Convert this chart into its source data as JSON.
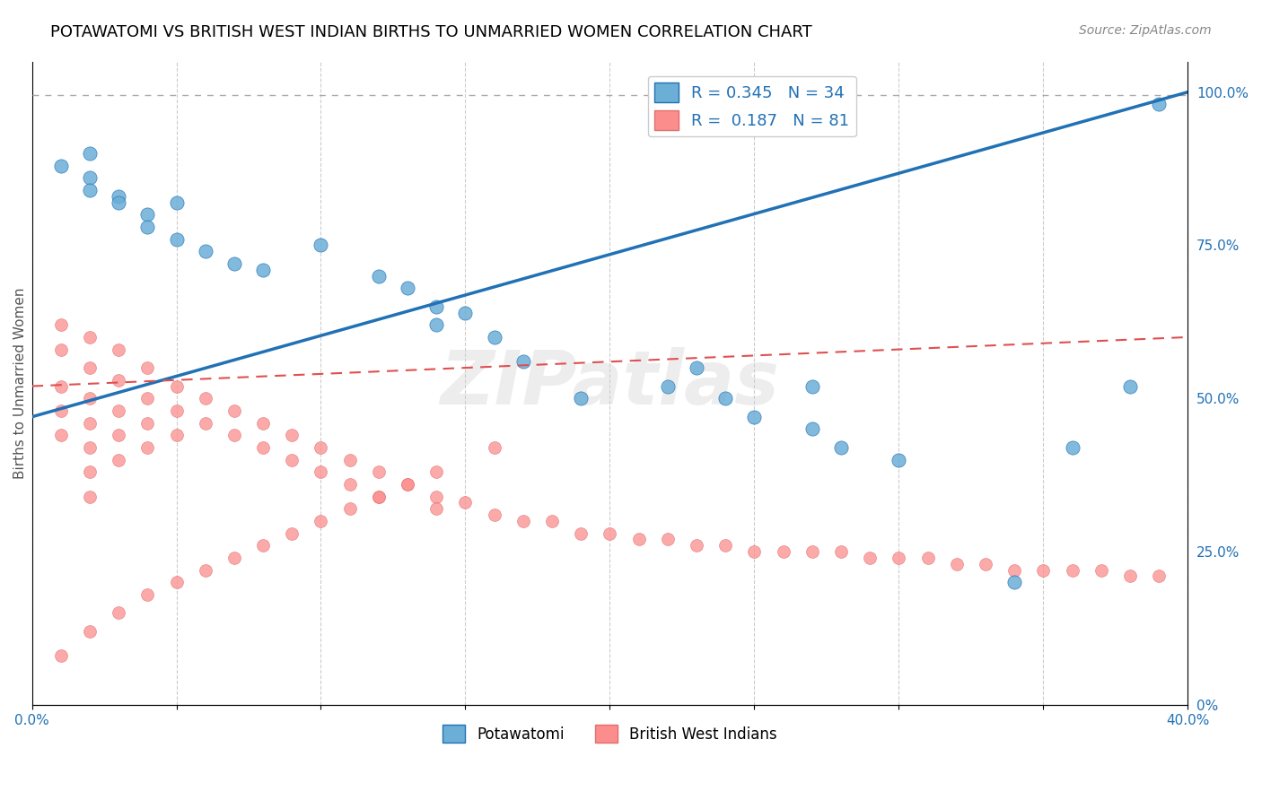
{
  "title": "POTAWATOMI VS BRITISH WEST INDIAN BIRTHS TO UNMARRIED WOMEN CORRELATION CHART",
  "source_text": "Source: ZipAtlas.com",
  "xlabel": "",
  "ylabel": "Births to Unmarried Women",
  "xlim": [
    0.0,
    0.4
  ],
  "ylim": [
    0.0,
    1.05
  ],
  "xticks": [
    0.0,
    0.05,
    0.1,
    0.15,
    0.2,
    0.25,
    0.3,
    0.35,
    0.4
  ],
  "xtick_labels": [
    "0.0%",
    "",
    "",
    "",
    "",
    "",
    "",
    "",
    "40.0%"
  ],
  "ytick_labels_right": [
    "0%",
    "25.0%",
    "50.0%",
    "75.0%",
    "100.0%"
  ],
  "ytick_vals_right": [
    0.0,
    0.25,
    0.5,
    0.75,
    1.0
  ],
  "color_blue": "#6baed6",
  "color_pink": "#fc8d8d",
  "color_blue_line": "#2171b5",
  "color_pink_line": "#d9534f",
  "legend_r1": "R = 0.345",
  "legend_n1": "N = 34",
  "legend_r2": "R =  0.187",
  "legend_n2": "N = 81",
  "watermark": "ZIPatlas",
  "potawatomi_x": [
    0.05,
    0.08,
    0.1,
    0.12,
    0.13,
    0.14,
    0.14,
    0.15,
    0.16,
    0.17,
    0.19,
    0.22,
    0.23,
    0.24,
    0.25,
    0.27,
    0.27,
    0.28,
    0.3,
    0.34,
    0.36,
    0.38,
    0.02,
    0.01,
    0.02,
    0.02,
    0.03,
    0.03,
    0.04,
    0.04,
    0.05,
    0.06,
    0.07,
    0.39
  ],
  "potawatomi_y": [
    0.82,
    0.71,
    0.75,
    0.7,
    0.68,
    0.65,
    0.62,
    0.64,
    0.6,
    0.56,
    0.5,
    0.52,
    0.55,
    0.5,
    0.47,
    0.52,
    0.45,
    0.42,
    0.4,
    0.2,
    0.42,
    0.52,
    0.9,
    0.88,
    0.86,
    0.84,
    0.83,
    0.82,
    0.8,
    0.78,
    0.76,
    0.74,
    0.72,
    0.98
  ],
  "bwi_x": [
    0.01,
    0.01,
    0.01,
    0.01,
    0.01,
    0.02,
    0.02,
    0.02,
    0.02,
    0.02,
    0.02,
    0.02,
    0.03,
    0.03,
    0.03,
    0.03,
    0.03,
    0.04,
    0.04,
    0.04,
    0.04,
    0.05,
    0.05,
    0.05,
    0.06,
    0.06,
    0.07,
    0.07,
    0.08,
    0.08,
    0.09,
    0.09,
    0.1,
    0.1,
    0.11,
    0.11,
    0.12,
    0.12,
    0.13,
    0.14,
    0.14,
    0.15,
    0.16,
    0.17,
    0.18,
    0.19,
    0.2,
    0.21,
    0.22,
    0.23,
    0.24,
    0.25,
    0.26,
    0.27,
    0.28,
    0.29,
    0.3,
    0.31,
    0.32,
    0.33,
    0.34,
    0.35,
    0.36,
    0.37,
    0.38,
    0.39,
    0.01,
    0.02,
    0.03,
    0.04,
    0.05,
    0.06,
    0.07,
    0.08,
    0.09,
    0.1,
    0.11,
    0.12,
    0.13,
    0.14,
    0.16
  ],
  "bwi_y": [
    0.62,
    0.58,
    0.52,
    0.48,
    0.44,
    0.6,
    0.55,
    0.5,
    0.46,
    0.42,
    0.38,
    0.34,
    0.58,
    0.53,
    0.48,
    0.44,
    0.4,
    0.55,
    0.5,
    0.46,
    0.42,
    0.52,
    0.48,
    0.44,
    0.5,
    0.46,
    0.48,
    0.44,
    0.46,
    0.42,
    0.44,
    0.4,
    0.42,
    0.38,
    0.4,
    0.36,
    0.38,
    0.34,
    0.36,
    0.34,
    0.32,
    0.33,
    0.31,
    0.3,
    0.3,
    0.28,
    0.28,
    0.27,
    0.27,
    0.26,
    0.26,
    0.25,
    0.25,
    0.25,
    0.25,
    0.24,
    0.24,
    0.24,
    0.23,
    0.23,
    0.22,
    0.22,
    0.22,
    0.22,
    0.21,
    0.21,
    0.08,
    0.12,
    0.15,
    0.18,
    0.2,
    0.22,
    0.24,
    0.26,
    0.28,
    0.3,
    0.32,
    0.34,
    0.36,
    0.38,
    0.42
  ]
}
